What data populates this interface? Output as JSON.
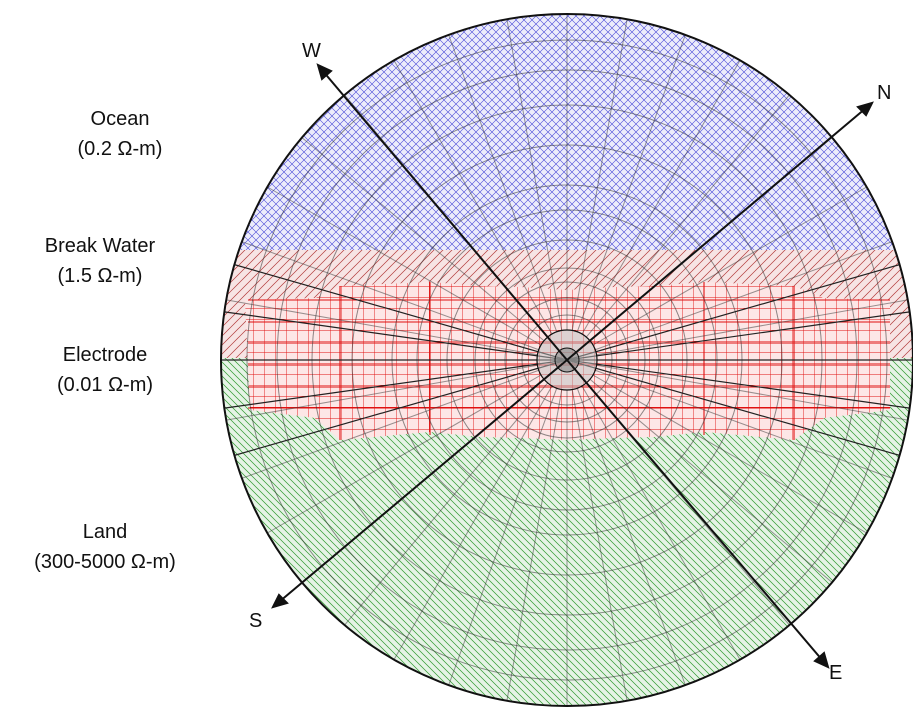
{
  "legend": {
    "ocean": {
      "name": "Ocean",
      "value": "(0.2 Ω-m)"
    },
    "break_water": {
      "name": "Break Water",
      "value": "(1.5 Ω-m)"
    },
    "electrode": {
      "name": "Electrode",
      "value": "(0.01 Ω-m)"
    },
    "land": {
      "name": "Land",
      "value": "(300-5000 Ω-m)"
    }
  },
  "directions": {
    "W": "W",
    "N": "N",
    "S": "S",
    "E": "E"
  },
  "colors": {
    "ocean": "#3b3bd8",
    "break_water": "#b23a3a",
    "electrode": "#e01010",
    "land": "#2f9a2f",
    "mesh": "#333333"
  }
}
